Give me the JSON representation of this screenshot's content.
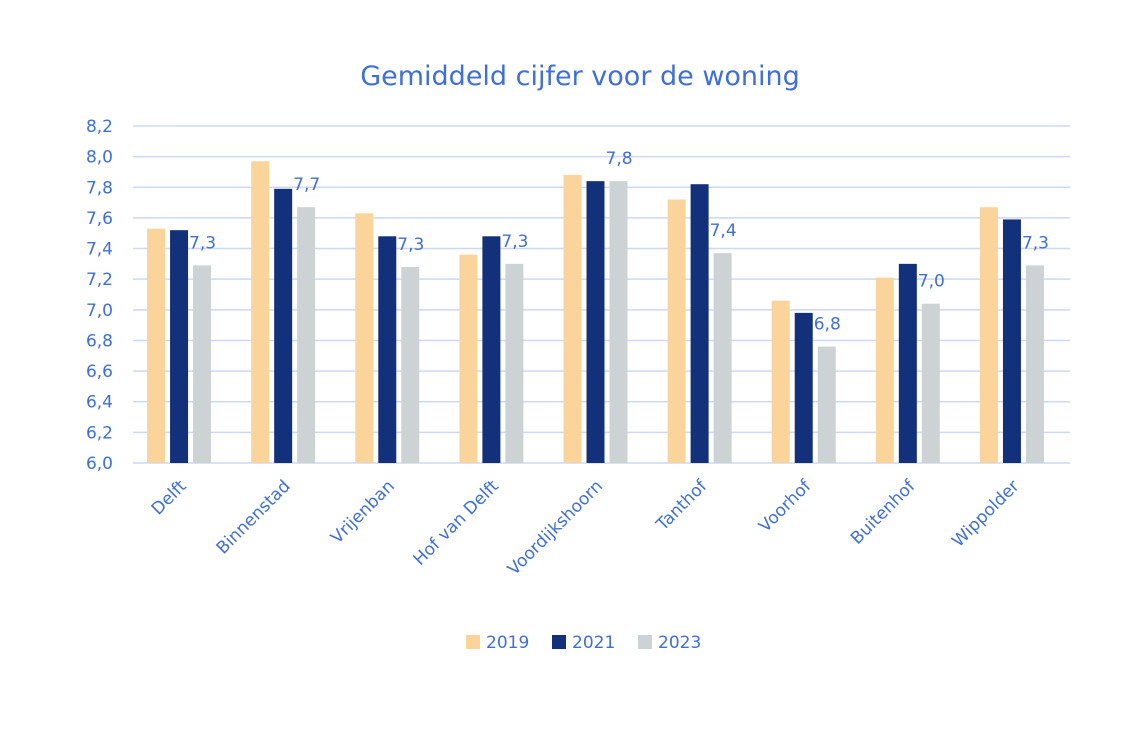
{
  "chart_data": {
    "type": "bar",
    "title": "Gemiddeld cijfer voor de woning",
    "categories": [
      "Delft",
      "Binnenstad",
      "Vrijenban",
      "Hof van Delft",
      "Voordijkshoorn",
      "Tanthof",
      "Voorhof",
      "Buitenhof",
      "Wippolder"
    ],
    "series": [
      {
        "name": "2019",
        "color": "#fad49a",
        "values": [
          7.53,
          7.97,
          7.63,
          7.36,
          7.88,
          7.72,
          7.06,
          7.21,
          7.67
        ]
      },
      {
        "name": "2021",
        "color": "#13317a",
        "values": [
          7.52,
          7.79,
          7.48,
          7.48,
          7.84,
          7.82,
          6.98,
          7.3,
          7.59
        ]
      },
      {
        "name": "2023",
        "color": "#cdd2d5",
        "values": [
          7.29,
          7.67,
          7.28,
          7.3,
          7.84,
          7.37,
          6.76,
          7.04,
          7.29
        ]
      }
    ],
    "data_labels": [
      {
        "category": "Delft",
        "series": "2023",
        "text": "7,3"
      },
      {
        "category": "Binnenstad",
        "series": "2023",
        "text": "7,7"
      },
      {
        "category": "Vrijenban",
        "series": "2023",
        "text": "7,3"
      },
      {
        "category": "Hof van Delft",
        "series": "2023",
        "text": "7,3"
      },
      {
        "category": "Voordijkshoorn",
        "series": "2023",
        "text": "7,8"
      },
      {
        "category": "Tanthof",
        "series": "2023",
        "text": "7,4"
      },
      {
        "category": "Voorhof",
        "series": "2023",
        "text": "6,8"
      },
      {
        "category": "Buitenhof",
        "series": "2023",
        "text": "7,0"
      },
      {
        "category": "Wippolder",
        "series": "2023",
        "text": "7,3"
      }
    ],
    "yticks": [
      "6,0",
      "6,2",
      "6,4",
      "6,6",
      "6,8",
      "7,0",
      "7,2",
      "7,4",
      "7,6",
      "7,8",
      "8,0",
      "8,2"
    ],
    "ylim": [
      6.0,
      8.2
    ],
    "grid": true,
    "legend_position": "bottom",
    "xlabel": "",
    "ylabel": ""
  }
}
